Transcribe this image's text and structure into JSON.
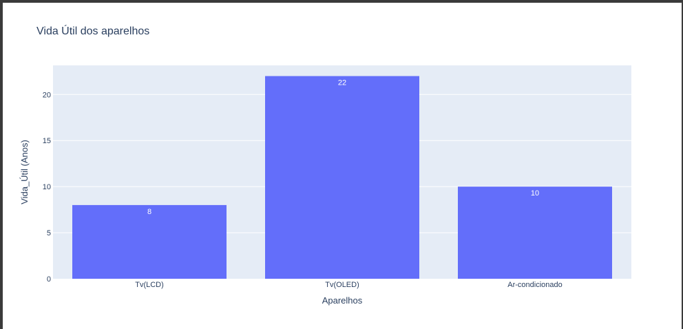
{
  "chart_data": {
    "type": "bar",
    "title": "Vida Útil dos aparelhos",
    "xlabel": "Aparelhos",
    "ylabel": "Vida_Útil (Anos)",
    "categories": [
      "Tv(LCD)",
      "Tv(OLED)",
      "Ar-condicionado"
    ],
    "values": [
      8,
      22,
      10
    ],
    "data_labels": [
      "8",
      "22",
      "10"
    ],
    "ylim": [
      0,
      23.16
    ],
    "yticks": [
      0,
      5,
      10,
      15,
      20
    ],
    "ytick_labels": [
      "0",
      "5",
      "10",
      "15",
      "20"
    ],
    "grid": true,
    "bar_color": "#636efa",
    "plot_bg": "#e5ecf6",
    "text_color": "#2a3f5f"
  }
}
